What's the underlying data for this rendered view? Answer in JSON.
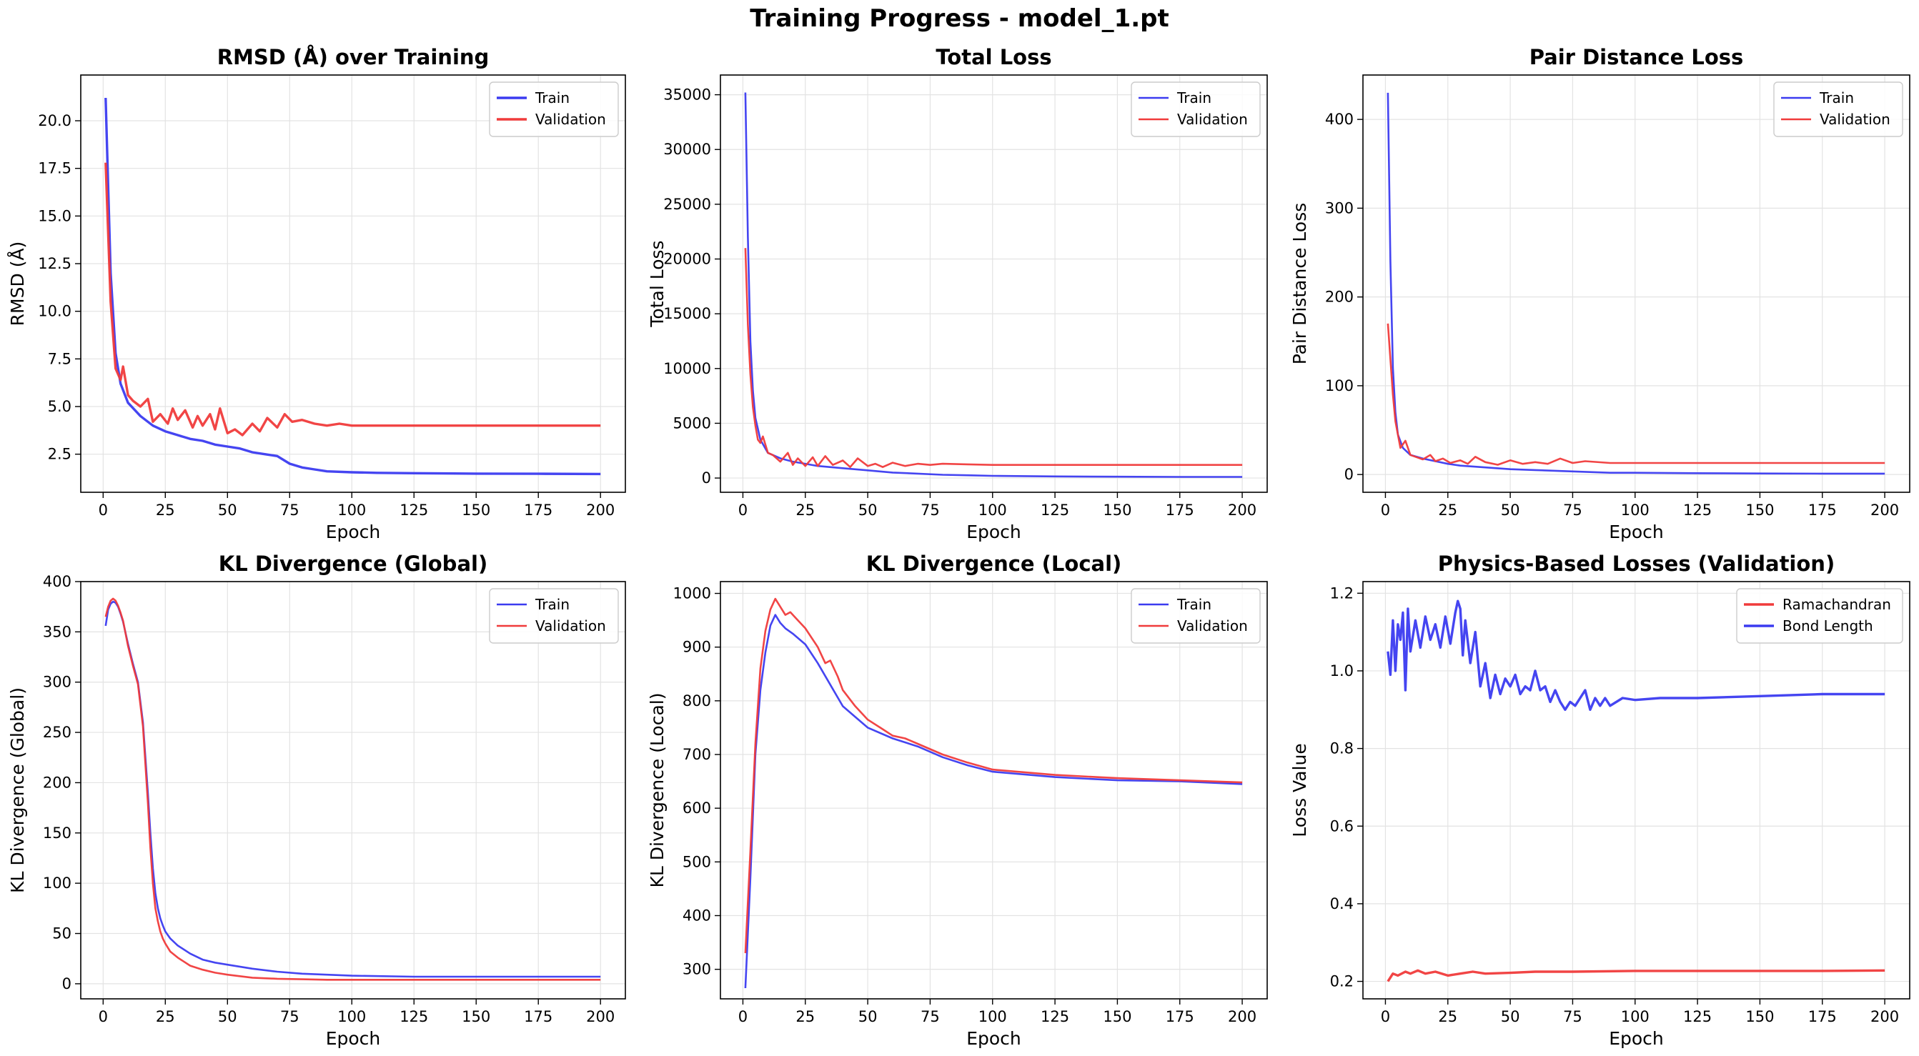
{
  "figure_title": "Training Progress - model_1.pt",
  "colors": {
    "train": "#3b3bf0",
    "validation": "#f03b3b",
    "grid": "#e3e3e3"
  },
  "chart_data": [
    {
      "type": "line",
      "title": "RMSD (Å) over Training",
      "xlabel": "Epoch",
      "ylabel": "RMSD (Å)",
      "xlim": [
        -9,
        210
      ],
      "ylim": [
        0.5,
        22.4
      ],
      "xticks": [
        0,
        25,
        50,
        75,
        100,
        125,
        150,
        175,
        200
      ],
      "yticks": [
        2.5,
        5.0,
        7.5,
        10.0,
        12.5,
        15.0,
        17.5,
        20.0
      ],
      "ytick_labels": [
        "2.5",
        "5.0",
        "7.5",
        "10.0",
        "12.5",
        "15.0",
        "17.5",
        "20.0"
      ],
      "legend": "top-right",
      "series": [
        {
          "name": "Train",
          "color": "#3b3bf0",
          "x": [
            1,
            3,
            5,
            7,
            10,
            15,
            20,
            25,
            30,
            35,
            40,
            45,
            50,
            55,
            60,
            65,
            70,
            75,
            80,
            85,
            90,
            100,
            110,
            125,
            150,
            175,
            200
          ],
          "y": [
            21.2,
            12.0,
            7.8,
            6.2,
            5.2,
            4.5,
            4.0,
            3.7,
            3.5,
            3.3,
            3.2,
            3.0,
            2.9,
            2.8,
            2.6,
            2.5,
            2.4,
            2.0,
            1.8,
            1.7,
            1.6,
            1.55,
            1.52,
            1.5,
            1.48,
            1.47,
            1.46
          ]
        },
        {
          "name": "Validation",
          "color": "#f03b3b",
          "x": [
            1,
            3,
            5,
            7,
            8,
            10,
            12,
            15,
            18,
            20,
            23,
            26,
            28,
            30,
            33,
            36,
            38,
            40,
            43,
            45,
            47,
            50,
            53,
            56,
            60,
            63,
            66,
            70,
            73,
            76,
            80,
            85,
            90,
            95,
            100,
            110,
            125,
            150,
            175,
            200
          ],
          "y": [
            17.8,
            10.5,
            7.0,
            6.4,
            7.1,
            5.6,
            5.3,
            5.0,
            5.4,
            4.2,
            4.6,
            4.1,
            4.9,
            4.3,
            4.8,
            3.9,
            4.5,
            4.0,
            4.6,
            3.8,
            4.9,
            3.6,
            3.8,
            3.5,
            4.1,
            3.7,
            4.4,
            3.9,
            4.6,
            4.2,
            4.3,
            4.1,
            4.0,
            4.1,
            4.0,
            4.0,
            4.0,
            4.0,
            4.0,
            4.0
          ]
        }
      ]
    },
    {
      "type": "line",
      "title": "Total Loss",
      "xlabel": "Epoch",
      "ylabel": "Total Loss",
      "xlim": [
        -9,
        210
      ],
      "ylim": [
        -1300,
        36800
      ],
      "xticks": [
        0,
        25,
        50,
        75,
        100,
        125,
        150,
        175,
        200
      ],
      "yticks": [
        0,
        5000,
        10000,
        15000,
        20000,
        25000,
        30000,
        35000
      ],
      "ytick_labels": [
        "0",
        "5000",
        "10000",
        "15000",
        "20000",
        "25000",
        "30000",
        "35000"
      ],
      "legend": "top-right",
      "series": [
        {
          "name": "Train",
          "color": "#3b3bf0",
          "x": [
            1,
            2,
            3,
            4,
            5,
            7,
            10,
            15,
            20,
            25,
            30,
            40,
            50,
            60,
            70,
            80,
            90,
            100,
            125,
            150,
            175,
            200
          ],
          "y": [
            35200,
            22000,
            12500,
            8000,
            5500,
            3500,
            2300,
            1800,
            1500,
            1300,
            1100,
            900,
            700,
            500,
            400,
            300,
            250,
            200,
            150,
            120,
            100,
            100
          ]
        },
        {
          "name": "Validation",
          "color": "#f03b3b",
          "x": [
            1,
            2,
            3,
            4,
            5,
            6,
            7,
            8,
            10,
            12,
            15,
            18,
            20,
            22,
            25,
            28,
            30,
            33,
            36,
            40,
            43,
            46,
            50,
            53,
            56,
            60,
            65,
            70,
            75,
            80,
            90,
            100,
            125,
            150,
            175,
            200
          ],
          "y": [
            21000,
            14000,
            9500,
            6500,
            4800,
            3500,
            3200,
            3800,
            2300,
            2100,
            1500,
            2300,
            1200,
            1800,
            1100,
            1900,
            1100,
            2000,
            1200,
            1600,
            1000,
            1800,
            1100,
            1300,
            1000,
            1400,
            1100,
            1300,
            1200,
            1300,
            1250,
            1200,
            1200,
            1200,
            1200,
            1200
          ]
        }
      ]
    },
    {
      "type": "line",
      "title": "Pair Distance Loss",
      "xlabel": "Epoch",
      "ylabel": "Pair Distance Loss",
      "xlim": [
        -9,
        210
      ],
      "ylim": [
        -20,
        450
      ],
      "xticks": [
        0,
        25,
        50,
        75,
        100,
        125,
        150,
        175,
        200
      ],
      "yticks": [
        0,
        100,
        200,
        300,
        400
      ],
      "ytick_labels": [
        "0",
        "100",
        "200",
        "300",
        "400"
      ],
      "legend": "top-right",
      "series": [
        {
          "name": "Train",
          "color": "#3b3bf0",
          "x": [
            1,
            2,
            3,
            4,
            5,
            7,
            10,
            15,
            20,
            25,
            30,
            40,
            50,
            60,
            70,
            80,
            90,
            100,
            125,
            150,
            175,
            200
          ],
          "y": [
            430,
            240,
            120,
            70,
            45,
            30,
            22,
            18,
            15,
            12,
            10,
            8,
            6,
            5,
            4,
            3,
            2,
            2,
            1.5,
            1.2,
            1,
            1
          ]
        },
        {
          "name": "Validation",
          "color": "#f03b3b",
          "x": [
            1,
            2,
            3,
            4,
            5,
            6,
            8,
            10,
            12,
            15,
            18,
            20,
            23,
            26,
            30,
            33,
            36,
            40,
            45,
            50,
            55,
            60,
            65,
            70,
            75,
            80,
            90,
            100,
            125,
            150,
            175,
            200
          ],
          "y": [
            170,
            130,
            90,
            60,
            45,
            30,
            38,
            22,
            20,
            17,
            22,
            15,
            18,
            13,
            16,
            12,
            20,
            14,
            11,
            16,
            12,
            14,
            12,
            18,
            13,
            15,
            13,
            13,
            13,
            13,
            13,
            13
          ]
        }
      ]
    },
    {
      "type": "line",
      "title": "KL Divergence (Global)",
      "xlabel": "Epoch",
      "ylabel": "KL Divergence (Global)",
      "xlim": [
        -9,
        210
      ],
      "ylim": [
        -15,
        400
      ],
      "xticks": [
        0,
        25,
        50,
        75,
        100,
        125,
        150,
        175,
        200
      ],
      "yticks": [
        0,
        50,
        100,
        150,
        200,
        250,
        300,
        350,
        400
      ],
      "ytick_labels": [
        "0",
        "50",
        "100",
        "150",
        "200",
        "250",
        "300",
        "350",
        "400"
      ],
      "legend": "top-right",
      "series": [
        {
          "name": "Train",
          "color": "#3b3bf0",
          "x": [
            1,
            2,
            3,
            4,
            5,
            6,
            7,
            8,
            10,
            12,
            14,
            16,
            18,
            19,
            20,
            21,
            22,
            23,
            24,
            25,
            27,
            30,
            35,
            40,
            45,
            50,
            60,
            70,
            80,
            90,
            100,
            125,
            150,
            175,
            200
          ],
          "y": [
            356,
            372,
            378,
            380,
            379,
            375,
            368,
            360,
            338,
            318,
            300,
            260,
            190,
            150,
            115,
            90,
            75,
            65,
            58,
            52,
            45,
            38,
            30,
            24,
            21,
            19,
            15,
            12,
            10,
            9,
            8,
            7,
            7,
            7,
            7
          ]
        },
        {
          "name": "Validation",
          "color": "#f03b3b",
          "x": [
            1,
            2,
            3,
            4,
            5,
            6,
            7,
            8,
            10,
            12,
            14,
            16,
            18,
            19,
            20,
            21,
            22,
            23,
            24,
            25,
            27,
            30,
            35,
            40,
            45,
            50,
            60,
            70,
            80,
            90,
            100,
            125,
            150,
            175,
            200
          ],
          "y": [
            365,
            375,
            381,
            383,
            381,
            376,
            369,
            361,
            336,
            316,
            298,
            256,
            180,
            135,
            100,
            75,
            62,
            52,
            45,
            40,
            32,
            26,
            18,
            14,
            11,
            9,
            6,
            5,
            4.5,
            4,
            4,
            4,
            4,
            4,
            4
          ]
        }
      ]
    },
    {
      "type": "line",
      "title": "KL Divergence (Local)",
      "xlabel": "Epoch",
      "ylabel": "KL Divergence (Local)",
      "xlim": [
        -9,
        210
      ],
      "ylim": [
        245,
        1022
      ],
      "xticks": [
        0,
        25,
        50,
        75,
        100,
        125,
        150,
        175,
        200
      ],
      "yticks": [
        300,
        400,
        500,
        600,
        700,
        800,
        900,
        1000
      ],
      "ytick_labels": [
        "300",
        "400",
        "500",
        "600",
        "700",
        "800",
        "900",
        "1000"
      ],
      "legend": "top-right",
      "series": [
        {
          "name": "Train",
          "color": "#3b3bf0",
          "x": [
            1,
            3,
            5,
            7,
            9,
            11,
            13,
            15,
            17,
            20,
            25,
            30,
            35,
            40,
            45,
            50,
            60,
            70,
            80,
            90,
            100,
            125,
            150,
            175,
            200
          ],
          "y": [
            265,
            470,
            700,
            820,
            890,
            940,
            960,
            945,
            935,
            925,
            905,
            870,
            830,
            790,
            770,
            750,
            730,
            715,
            695,
            680,
            668,
            658,
            652,
            650,
            645
          ]
        },
        {
          "name": "Validation",
          "color": "#f03b3b",
          "x": [
            1,
            3,
            5,
            7,
            9,
            11,
            13,
            15,
            17,
            19,
            21,
            25,
            30,
            33,
            35,
            38,
            40,
            45,
            50,
            55,
            60,
            65,
            70,
            80,
            90,
            100,
            125,
            150,
            175,
            200
          ],
          "y": [
            330,
            520,
            720,
            860,
            930,
            970,
            990,
            975,
            960,
            965,
            955,
            935,
            900,
            870,
            875,
            845,
            820,
            790,
            765,
            750,
            735,
            730,
            720,
            700,
            685,
            672,
            662,
            656,
            652,
            648
          ]
        }
      ]
    },
    {
      "type": "line",
      "title": "Physics-Based Losses (Validation)",
      "xlabel": "Epoch",
      "ylabel": "Loss Value",
      "xlim": [
        -9,
        210
      ],
      "ylim": [
        0.155,
        1.23
      ],
      "xticks": [
        0,
        25,
        50,
        75,
        100,
        125,
        150,
        175,
        200
      ],
      "yticks": [
        0.2,
        0.4,
        0.6,
        0.8,
        1.0,
        1.2
      ],
      "ytick_labels": [
        "0.2",
        "0.4",
        "0.6",
        "0.8",
        "1.0",
        "1.2"
      ],
      "legend": "top-right",
      "series": [
        {
          "name": "Ramachandran",
          "color": "#f03b3b",
          "x": [
            1,
            3,
            5,
            8,
            10,
            13,
            16,
            20,
            25,
            30,
            35,
            40,
            50,
            60,
            75,
            100,
            125,
            150,
            175,
            200
          ],
          "y": [
            0.2,
            0.22,
            0.215,
            0.225,
            0.22,
            0.228,
            0.22,
            0.225,
            0.215,
            0.22,
            0.225,
            0.22,
            0.222,
            0.225,
            0.225,
            0.227,
            0.227,
            0.227,
            0.227,
            0.228
          ]
        },
        {
          "name": "Bond Length",
          "color": "#3b3bf0",
          "x": [
            1,
            2,
            3,
            4,
            5,
            6,
            7,
            8,
            9,
            10,
            12,
            14,
            16,
            18,
            20,
            22,
            24,
            26,
            28,
            29,
            30,
            31,
            32,
            34,
            36,
            38,
            40,
            42,
            44,
            46,
            48,
            50,
            52,
            54,
            56,
            58,
            60,
            62,
            64,
            66,
            68,
            70,
            72,
            74,
            76,
            78,
            80,
            82,
            84,
            86,
            88,
            90,
            95,
            100,
            110,
            125,
            150,
            175,
            200
          ],
          "y": [
            1.05,
            0.99,
            1.13,
            1.0,
            1.12,
            1.08,
            1.15,
            0.95,
            1.16,
            1.05,
            1.13,
            1.06,
            1.14,
            1.08,
            1.12,
            1.06,
            1.14,
            1.07,
            1.15,
            1.18,
            1.16,
            1.04,
            1.13,
            1.02,
            1.1,
            0.96,
            1.02,
            0.93,
            0.99,
            0.94,
            0.98,
            0.96,
            0.99,
            0.94,
            0.96,
            0.95,
            1.0,
            0.95,
            0.96,
            0.92,
            0.95,
            0.92,
            0.9,
            0.92,
            0.91,
            0.93,
            0.95,
            0.9,
            0.93,
            0.91,
            0.93,
            0.91,
            0.93,
            0.925,
            0.93,
            0.93,
            0.935,
            0.94,
            0.94
          ]
        }
      ]
    }
  ]
}
